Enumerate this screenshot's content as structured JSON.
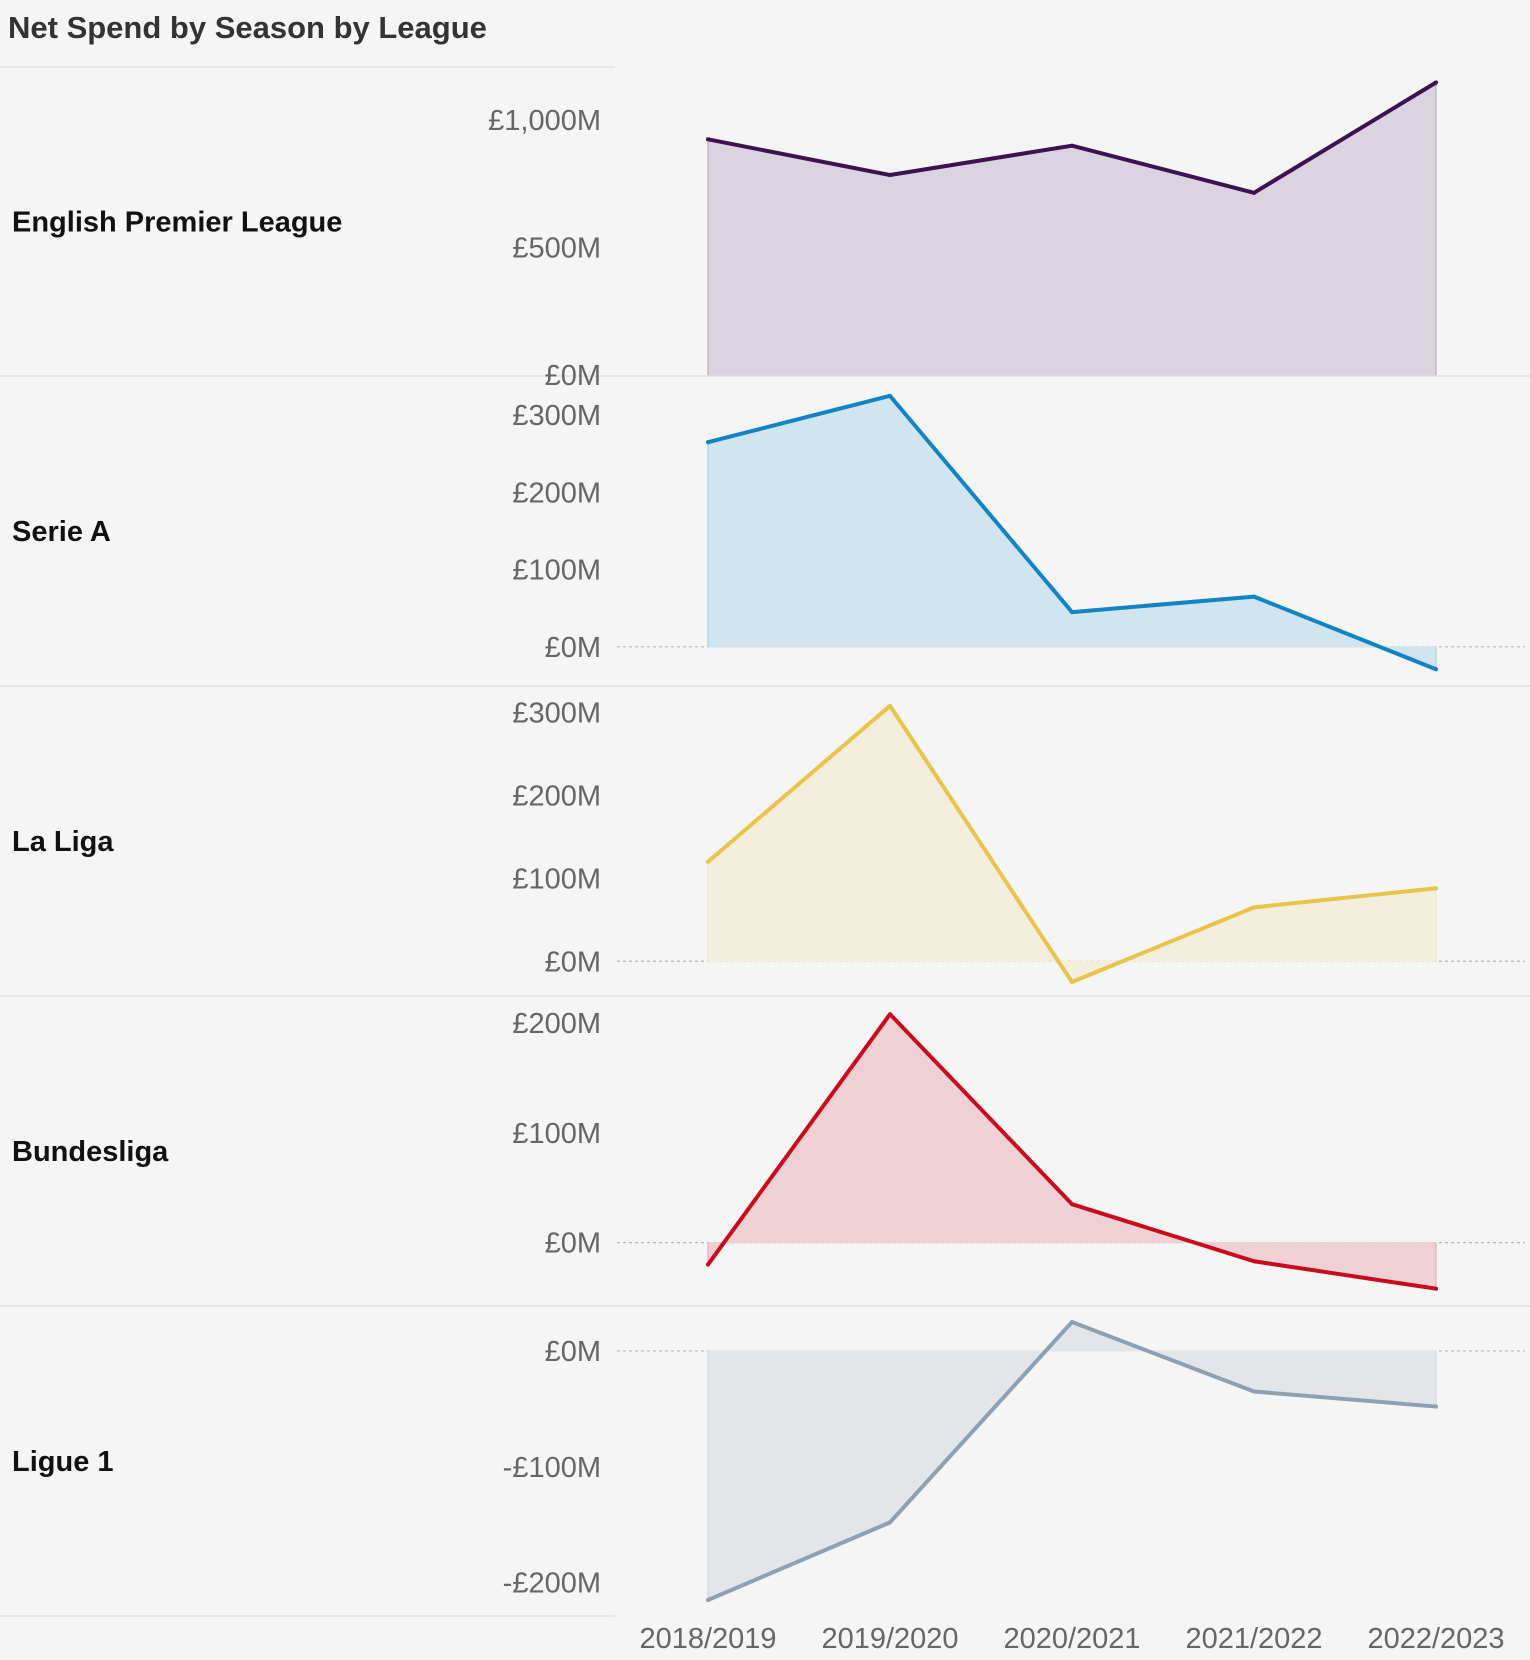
{
  "title": "Net Spend by Season by League",
  "chart_data": {
    "type": "area",
    "title": "Net Spend by Season by League",
    "x": [
      "2018/2019",
      "2019/2020",
      "2020/2021",
      "2021/2022",
      "2022/2023"
    ],
    "grid": false,
    "zero_line": "dotted",
    "panels": [
      {
        "name": "English Premier League",
        "color": "#3d1152",
        "fill": "#dbd3e0",
        "ylim": [
          0,
          1150
        ],
        "ticks": [
          0,
          500,
          1000
        ],
        "tick_labels": [
          "£0M",
          "£500M",
          "£1,000M"
        ],
        "values": [
          925,
          785,
          900,
          715,
          1148
        ]
      },
      {
        "name": "Serie A",
        "color": "#1184c8",
        "fill": "#d1e5f0",
        "ylim": [
          -30,
          330
        ],
        "ticks": [
          0,
          100,
          200,
          300
        ],
        "tick_labels": [
          "£0M",
          "£100M",
          "£200M",
          "£300M"
        ],
        "values": [
          265,
          325,
          45,
          65,
          -29
        ]
      },
      {
        "name": "La Liga",
        "color": "#eac44a",
        "fill": "#f4eedc",
        "ylim": [
          -25,
          315
        ],
        "ticks": [
          0,
          100,
          200,
          300
        ],
        "tick_labels": [
          "£0M",
          "£100M",
          "£200M",
          "£300M"
        ],
        "values": [
          120,
          308,
          -25,
          65,
          88
        ]
      },
      {
        "name": "Bundesliga",
        "color": "#c90b1c",
        "fill": "#efd1d5",
        "ylim": [
          -45,
          210
        ],
        "ticks": [
          0,
          100,
          200
        ],
        "tick_labels": [
          "£0M",
          "£100M",
          "£200M"
        ],
        "values": [
          -20,
          208,
          35,
          -17,
          -42
        ]
      },
      {
        "name": "Ligue 1",
        "color": "#8ea1b2",
        "fill": "#e3e6e9",
        "ylim": [
          -215,
          25
        ],
        "ticks": [
          -200,
          -100,
          0
        ],
        "tick_labels": [
          "-£200M",
          "-£100M",
          "£0M"
        ],
        "values": [
          -215,
          -148,
          25,
          -35,
          -48
        ]
      }
    ]
  }
}
